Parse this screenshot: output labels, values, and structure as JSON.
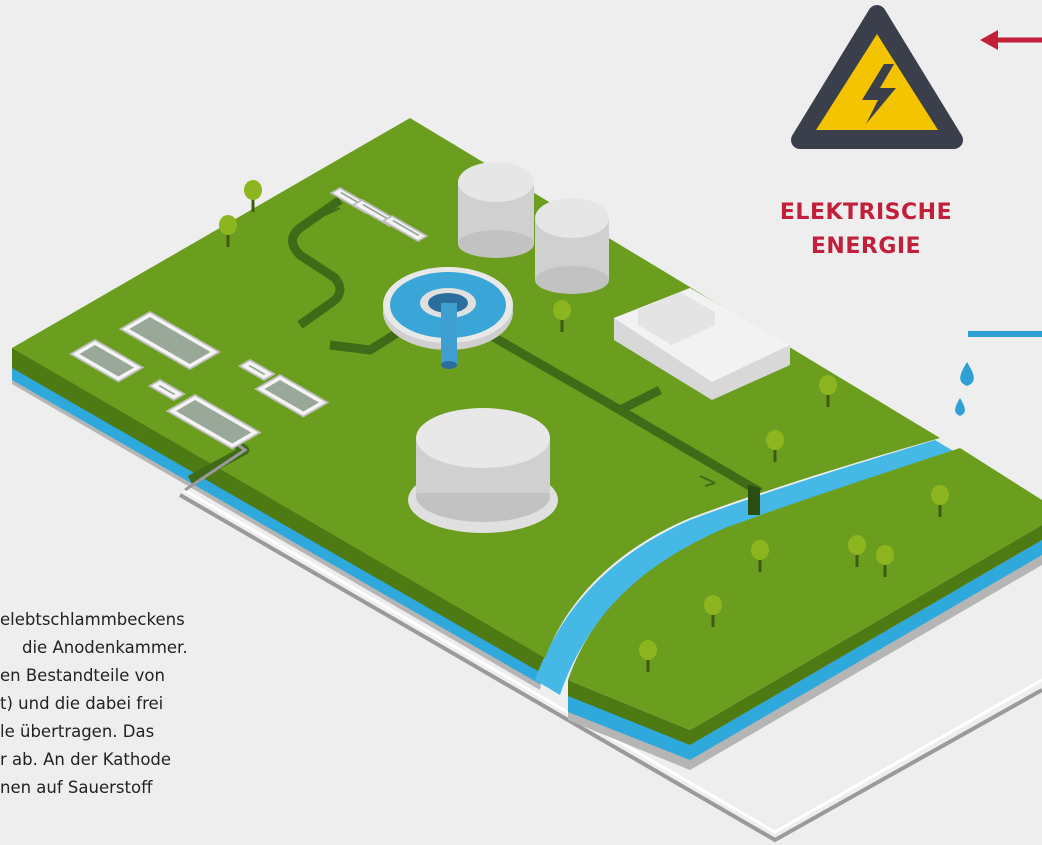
{
  "label": {
    "lines": [
      "ELEKTRISCHE",
      "ENERGIE"
    ]
  },
  "body": {
    "lines": [
      "elebtschlammbeckens",
      "die Anodenkammer.",
      "en Bestandteile von",
      "t) und die dabei frei",
      "le übertragen. Das",
      "r ab. An der Kathode",
      "nen auf Sauerstoff"
    ]
  }
}
